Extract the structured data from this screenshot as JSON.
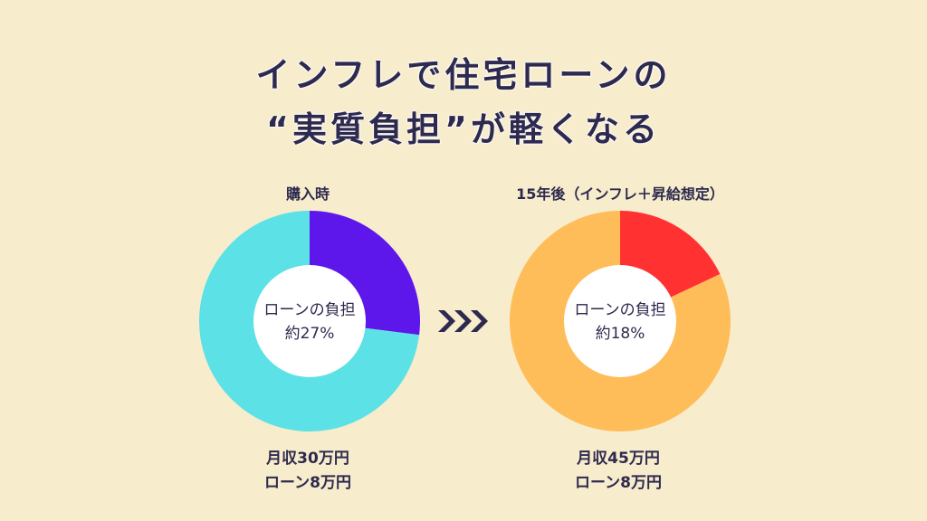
{
  "title": {
    "line1": "インフレで住宅ローンの",
    "line2": "“実質負担”が軽くなる"
  },
  "colors": {
    "background": "#f7eccb",
    "text": "#2e2a4f",
    "left_loan": "#5e17eb",
    "left_rest": "#5ce1e6",
    "right_loan": "#ff3131",
    "right_rest": "#ffbd59",
    "center": "#ffffff"
  },
  "arrow_icon": "triple-chevron-right-icon",
  "chart_data": [
    {
      "type": "pie",
      "title": "購入時",
      "center_label": "ローンの負担",
      "center_value": "約27%",
      "slices": [
        {
          "label": "ローンの負担",
          "value": 27
        },
        {
          "label": "",
          "value": 73
        }
      ],
      "footer": [
        "月収30万円",
        "ローン8万円"
      ]
    },
    {
      "type": "pie",
      "title": "15年後（インフレ＋昇給想定）",
      "center_label": "ローンの負担",
      "center_value": "約18%",
      "slices": [
        {
          "label": "ローンの負担",
          "value": 18
        },
        {
          "label": "",
          "value": 82
        }
      ],
      "footer": [
        "月収45万円",
        "ローン8万円"
      ]
    }
  ]
}
